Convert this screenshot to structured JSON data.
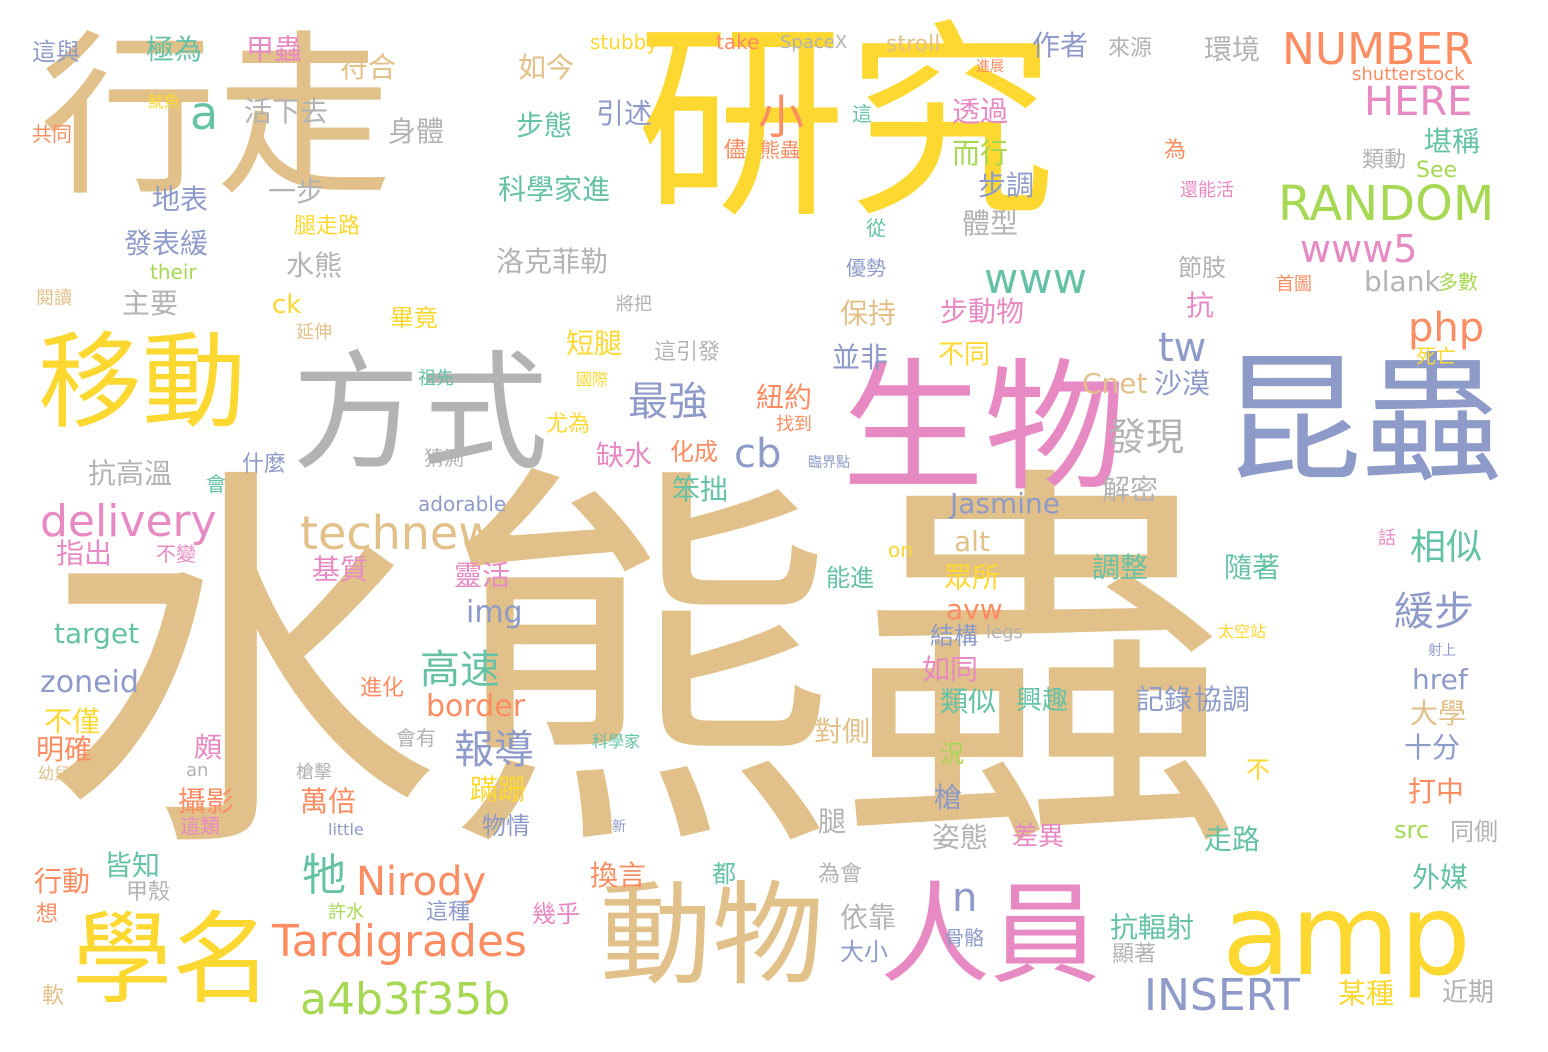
{
  "colors": {
    "tan": "#e2c089",
    "gold": "#fdd830",
    "slate": "#8e9bc8",
    "pink": "#e78ac3",
    "gray": "#b3b3b3",
    "green": "#a6d854",
    "orange": "#fc8d62",
    "teal": "#66c2a5"
  },
  "words": [
    {
      "text": "水熊蟲",
      "color": "tan"
    },
    {
      "text": "研究",
      "color": "gold"
    },
    {
      "text": "行走",
      "color": "tan"
    },
    {
      "text": "昆蟲",
      "color": "slate"
    },
    {
      "text": "生物",
      "color": "pink"
    },
    {
      "text": "方式",
      "color": "gray"
    },
    {
      "text": "移動",
      "color": "gold"
    },
    {
      "text": "動物",
      "color": "tan"
    },
    {
      "text": "人員",
      "color": "pink"
    },
    {
      "text": "amp",
      "color": "gold"
    },
    {
      "text": "學名",
      "color": "gold"
    },
    {
      "text": "Tardigrades",
      "color": "orange"
    },
    {
      "text": "a4b3f35b",
      "color": "green"
    },
    {
      "text": "technews",
      "color": "tan"
    },
    {
      "text": "delivery",
      "color": "pink"
    },
    {
      "text": "NUMBER",
      "color": "orange"
    },
    {
      "text": "RANDOM",
      "color": "green"
    },
    {
      "text": "www5",
      "color": "pink"
    },
    {
      "text": "HERE",
      "color": "pink"
    },
    {
      "text": "php",
      "color": "orange"
    },
    {
      "text": "INSERT",
      "color": "slate"
    },
    {
      "text": "Nirody",
      "color": "orange"
    },
    {
      "text": "www",
      "color": "teal"
    },
    {
      "text": "最強",
      "color": "slate"
    },
    {
      "text": "發現",
      "color": "gray"
    },
    {
      "text": "緩步",
      "color": "slate"
    },
    {
      "text": "相似",
      "color": "teal"
    },
    {
      "text": "報導",
      "color": "slate"
    },
    {
      "text": "高速",
      "color": "teal"
    },
    {
      "text": "牠",
      "color": "teal"
    },
    {
      "text": "小",
      "color": "orange"
    },
    {
      "text": "a",
      "color": "teal"
    },
    {
      "text": "tw",
      "color": "slate"
    },
    {
      "text": "cb",
      "color": "slate"
    },
    {
      "text": "n",
      "color": "slate"
    },
    {
      "text": "Cnet",
      "color": "tan"
    },
    {
      "text": "沙漠",
      "color": "slate"
    },
    {
      "text": "Jasmine",
      "color": "slate"
    },
    {
      "text": "zoneid",
      "color": "slate"
    },
    {
      "text": "target",
      "color": "teal"
    },
    {
      "text": "border",
      "color": "orange"
    },
    {
      "text": "img",
      "color": "slate"
    },
    {
      "text": "href",
      "color": "slate"
    },
    {
      "text": "avw",
      "color": "orange"
    },
    {
      "text": "alt",
      "color": "tan"
    },
    {
      "text": "src",
      "color": "green"
    },
    {
      "text": "blank",
      "color": "gray"
    },
    {
      "text": "ck",
      "color": "gold"
    },
    {
      "text": "adorable",
      "color": "slate"
    },
    {
      "text": "stubby",
      "color": "gold"
    },
    {
      "text": "take",
      "color": "orange"
    },
    {
      "text": "SpaceX",
      "color": "gray"
    },
    {
      "text": "stroll",
      "color": "tan"
    },
    {
      "text": "shutterstock",
      "color": "orange"
    },
    {
      "text": "See",
      "color": "green"
    },
    {
      "text": "their",
      "color": "green"
    },
    {
      "text": "on",
      "color": "gold"
    },
    {
      "text": "legs",
      "color": "gray"
    },
    {
      "text": "an",
      "color": "gray"
    },
    {
      "text": "little",
      "color": "slate"
    },
    {
      "text": "這與",
      "color": "slate"
    },
    {
      "text": "極為",
      "color": "teal"
    },
    {
      "text": "甲蟲",
      "color": "pink"
    },
    {
      "text": "符合",
      "color": "tan"
    },
    {
      "text": "如今",
      "color": "tan"
    },
    {
      "text": "作者",
      "color": "slate"
    },
    {
      "text": "來源",
      "color": "gray"
    },
    {
      "text": "環境",
      "color": "gray"
    },
    {
      "text": "活下去",
      "color": "gray"
    },
    {
      "text": "身體",
      "color": "gray"
    },
    {
      "text": "步態",
      "color": "teal"
    },
    {
      "text": "引述",
      "color": "slate"
    },
    {
      "text": "透過",
      "color": "pink"
    },
    {
      "text": "而行",
      "color": "green"
    },
    {
      "text": "步調",
      "color": "slate"
    },
    {
      "text": "堪稱",
      "color": "teal"
    },
    {
      "text": "類動",
      "color": "gray"
    },
    {
      "text": "地表",
      "color": "slate"
    },
    {
      "text": "一步",
      "color": "gray"
    },
    {
      "text": "科學家進",
      "color": "teal"
    },
    {
      "text": "體型",
      "color": "gray"
    },
    {
      "text": "發表緩",
      "color": "slate"
    },
    {
      "text": "水熊",
      "color": "gray"
    },
    {
      "text": "洛克菲勒",
      "color": "gray"
    },
    {
      "text": "節肢",
      "color": "gray"
    },
    {
      "text": "多數",
      "color": "green"
    },
    {
      "text": "主要",
      "color": "gray"
    },
    {
      "text": "畢竟",
      "color": "gold"
    },
    {
      "text": "保持",
      "color": "tan"
    },
    {
      "text": "步動物",
      "color": "pink"
    },
    {
      "text": "抗",
      "color": "pink"
    },
    {
      "text": "短腿",
      "color": "gold"
    },
    {
      "text": "並非",
      "color": "slate"
    },
    {
      "text": "不同",
      "color": "gold"
    },
    {
      "text": "紐約",
      "color": "orange"
    },
    {
      "text": "尤為",
      "color": "gold"
    },
    {
      "text": "抗高溫",
      "color": "gray"
    },
    {
      "text": "缺水",
      "color": "pink"
    },
    {
      "text": "化成",
      "color": "orange"
    },
    {
      "text": "笨拙",
      "color": "teal"
    },
    {
      "text": "解密",
      "color": "gray"
    },
    {
      "text": "會",
      "color": "teal"
    },
    {
      "text": "什麼",
      "color": "slate"
    },
    {
      "text": "指出",
      "color": "pink"
    },
    {
      "text": "不變",
      "color": "pink"
    },
    {
      "text": "基質",
      "color": "pink"
    },
    {
      "text": "靈活",
      "color": "pink"
    },
    {
      "text": "眾所",
      "color": "gold"
    },
    {
      "text": "調整",
      "color": "teal"
    },
    {
      "text": "隨著",
      "color": "teal"
    },
    {
      "text": "能進",
      "color": "teal"
    },
    {
      "text": "結構",
      "color": "slate"
    },
    {
      "text": "如同",
      "color": "pink"
    },
    {
      "text": "類似",
      "color": "teal"
    },
    {
      "text": "興趣",
      "color": "teal"
    },
    {
      "text": "記錄",
      "color": "slate"
    },
    {
      "text": "協調",
      "color": "slate"
    },
    {
      "text": "大學",
      "color": "tan"
    },
    {
      "text": "不僅",
      "color": "gold"
    },
    {
      "text": "明確",
      "color": "orange"
    },
    {
      "text": "頗",
      "color": "pink"
    },
    {
      "text": "對側",
      "color": "tan"
    },
    {
      "text": "十分",
      "color": "slate"
    },
    {
      "text": "況",
      "color": "green"
    },
    {
      "text": "打中",
      "color": "orange"
    },
    {
      "text": "攝影",
      "color": "orange"
    },
    {
      "text": "萬倍",
      "color": "orange"
    },
    {
      "text": "蹣跚",
      "color": "gold"
    },
    {
      "text": "槍",
      "color": "slate"
    },
    {
      "text": "腿",
      "color": "gray"
    },
    {
      "text": "物情",
      "color": "slate"
    },
    {
      "text": "姿態",
      "color": "gray"
    },
    {
      "text": "差異",
      "color": "pink"
    },
    {
      "text": "走路",
      "color": "teal"
    },
    {
      "text": "同側",
      "color": "gray"
    },
    {
      "text": "皆知",
      "color": "teal"
    },
    {
      "text": "行動",
      "color": "orange"
    },
    {
      "text": "換言",
      "color": "orange"
    },
    {
      "text": "都",
      "color": "teal"
    },
    {
      "text": "外媒",
      "color": "teal"
    },
    {
      "text": "依靠",
      "color": "gray"
    },
    {
      "text": "抗輻射",
      "color": "teal"
    },
    {
      "text": "大小",
      "color": "slate"
    },
    {
      "text": "幾乎",
      "color": "pink"
    },
    {
      "text": "某種",
      "color": "gold"
    },
    {
      "text": "近期",
      "color": "gray"
    },
    {
      "text": "甲殼",
      "color": "gray"
    },
    {
      "text": "許水",
      "color": "green"
    },
    {
      "text": "這種",
      "color": "slate"
    },
    {
      "text": "骨骼",
      "color": "slate"
    },
    {
      "text": "顯著",
      "color": "gray"
    },
    {
      "text": "軟",
      "color": "tan"
    },
    {
      "text": "想",
      "color": "orange"
    },
    {
      "text": "為會",
      "color": "gray"
    },
    {
      "text": "共同",
      "color": "orange"
    },
    {
      "text": "魷魚",
      "color": "gold"
    },
    {
      "text": "儘",
      "color": "orange"
    },
    {
      "text": "熊蟲",
      "color": "orange"
    },
    {
      "text": "這",
      "color": "teal"
    },
    {
      "text": "為",
      "color": "orange"
    },
    {
      "text": "還能活",
      "color": "pink"
    },
    {
      "text": "進展",
      "color": "orange"
    },
    {
      "text": "腿走路",
      "color": "gold"
    },
    {
      "text": "從",
      "color": "teal"
    },
    {
      "text": "優勢",
      "color": "slate"
    },
    {
      "text": "首圖",
      "color": "orange"
    },
    {
      "text": "閱讀",
      "color": "tan"
    },
    {
      "text": "將把",
      "color": "gray"
    },
    {
      "text": "延伸",
      "color": "tan"
    },
    {
      "text": "這引發",
      "color": "gray"
    },
    {
      "text": "死亡",
      "color": "gold"
    },
    {
      "text": "祖先",
      "color": "teal"
    },
    {
      "text": "國際",
      "color": "gold"
    },
    {
      "text": "找到",
      "color": "orange"
    },
    {
      "text": "猜測",
      "color": "gray"
    },
    {
      "text": "臨界點",
      "color": "slate"
    },
    {
      "text": "話",
      "color": "pink"
    },
    {
      "text": "太空站",
      "color": "gold"
    },
    {
      "text": "射上",
      "color": "slate"
    },
    {
      "text": "進化",
      "color": "orange"
    },
    {
      "text": "會有",
      "color": "gray"
    },
    {
      "text": "科學家",
      "color": "teal"
    },
    {
      "text": "幼兒",
      "color": "tan"
    },
    {
      "text": "槍擊",
      "color": "gray"
    },
    {
      "text": "新",
      "color": "slate"
    },
    {
      "text": "不",
      "color": "gold"
    },
    {
      "text": "這類",
      "color": "pink"
    }
  ]
}
